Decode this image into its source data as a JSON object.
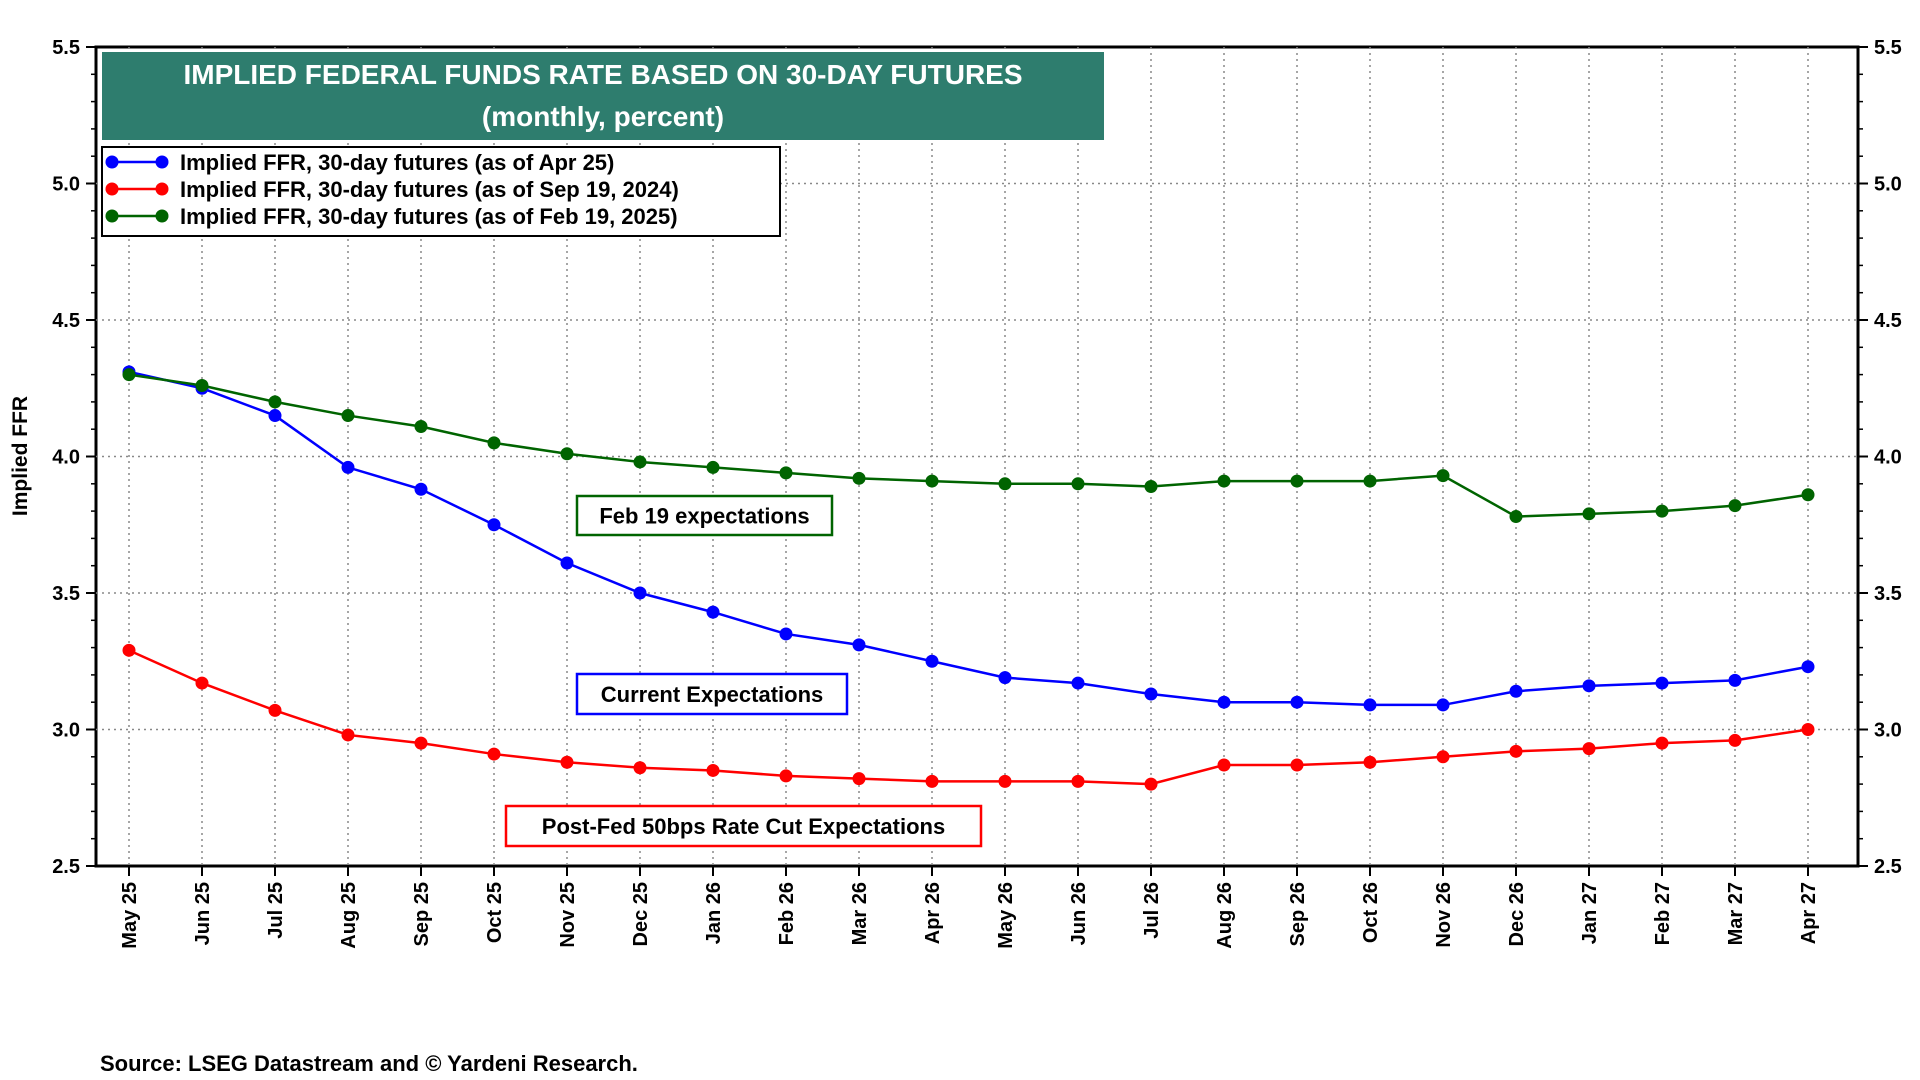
{
  "chart_data": {
    "type": "line",
    "title": "IMPLIED FEDERAL FUNDS RATE BASED ON 30-DAY FUTURES",
    "subtitle": "(monthly, percent)",
    "ylabel": "Implied FFR",
    "xlabel": "",
    "ylim": [
      2.5,
      5.5
    ],
    "yticks": [
      "2.5",
      "3.0",
      "3.5",
      "4.0",
      "4.5",
      "5.0",
      "5.5"
    ],
    "grid": true,
    "legend_position": "top-left",
    "categories": [
      "May 25",
      "Jun 25",
      "Jul 25",
      "Aug 25",
      "Sep 25",
      "Oct 25",
      "Nov 25",
      "Dec 25",
      "Jan 26",
      "Feb 26",
      "Mar 26",
      "Apr 26",
      "May 26",
      "Jun 26",
      "Jul 26",
      "Aug 26",
      "Sep 26",
      "Oct 26",
      "Nov 26",
      "Dec 26",
      "Jan 27",
      "Feb 27",
      "Mar 27",
      "Apr 27"
    ],
    "series": [
      {
        "name": "Implied FFR, 30-day futures (as of Apr 25)",
        "color": "#0000ff",
        "values": [
          4.31,
          4.25,
          4.15,
          3.96,
          3.88,
          3.75,
          3.61,
          3.5,
          3.43,
          3.35,
          3.31,
          3.25,
          3.19,
          3.17,
          3.13,
          3.1,
          3.1,
          3.09,
          3.09,
          3.14,
          3.16,
          3.17,
          3.18,
          3.23
        ]
      },
      {
        "name": "Implied FFR, 30-day futures (as of Sep 19, 2024)",
        "color": "#ff0000",
        "values": [
          3.29,
          3.17,
          3.07,
          2.98,
          2.95,
          2.91,
          2.88,
          2.86,
          2.85,
          2.83,
          2.82,
          2.81,
          2.81,
          2.81,
          2.8,
          2.87,
          2.87,
          2.88,
          2.9,
          2.92,
          2.93,
          2.95,
          2.96,
          3.0
        ]
      },
      {
        "name": "Implied FFR, 30-day futures (as of Feb 19, 2025)",
        "color": "#006400",
        "values": [
          4.3,
          4.26,
          4.2,
          4.15,
          4.11,
          4.05,
          4.01,
          3.98,
          3.96,
          3.94,
          3.92,
          3.91,
          3.9,
          3.9,
          3.89,
          3.91,
          3.91,
          3.91,
          3.93,
          3.78,
          3.79,
          3.8,
          3.82,
          3.86
        ]
      }
    ],
    "annotations": [
      {
        "text": "Feb 19 expectations",
        "color": "#006400",
        "near_category": "Feb 26",
        "near_value": 3.77
      },
      {
        "text": "Current Expectations",
        "color": "#0000ff",
        "near_category": "Feb 26",
        "near_value": 3.13
      },
      {
        "text": "Post-Fed 50bps Rate Cut Expectations",
        "color": "#ff0000",
        "near_category": "Feb 26",
        "near_value": 2.65
      }
    ],
    "title_bg_color": "#2e7d6e",
    "source": "Source: LSEG Datastream and © Yardeni Research."
  }
}
